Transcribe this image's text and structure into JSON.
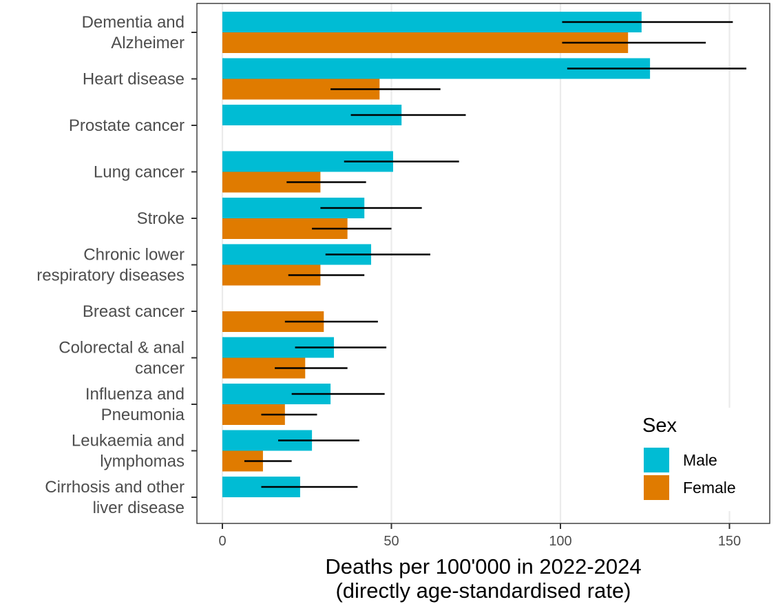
{
  "chart_data": {
    "type": "bar",
    "orientation": "horizontal",
    "categories": [
      [
        "Dementia and",
        "Alzheimer"
      ],
      [
        "Heart disease"
      ],
      [
        "Prostate cancer"
      ],
      [
        "Lung cancer"
      ],
      [
        "Stroke"
      ],
      [
        "Chronic lower",
        "respiratory diseases"
      ],
      [
        "Breast cancer"
      ],
      [
        "Colorectal & anal",
        "cancer"
      ],
      [
        "Influenza and",
        "Pneumonia"
      ],
      [
        "Leukaemia and",
        "lymphomas"
      ],
      [
        "Cirrhosis and other",
        "liver disease"
      ]
    ],
    "series": [
      {
        "name": "Male",
        "color": "#00bcd4",
        "values": [
          124,
          126.5,
          53,
          50.5,
          42,
          44,
          null,
          33,
          32,
          26.5,
          23
        ],
        "lower": [
          100.5,
          102,
          38,
          36,
          29,
          30.5,
          null,
          21.5,
          20.5,
          16.5,
          11.5
        ],
        "upper": [
          151,
          155,
          72,
          70,
          59,
          61.5,
          null,
          48.5,
          48,
          40.5,
          40
        ]
      },
      {
        "name": "Female",
        "color": "#e07b00",
        "values": [
          120,
          46.5,
          null,
          29,
          37,
          29,
          30,
          24.5,
          18.5,
          12,
          null
        ],
        "lower": [
          100.5,
          32,
          null,
          19,
          26.5,
          19.5,
          18.5,
          15.5,
          11.5,
          6.5,
          null
        ],
        "upper": [
          143,
          64.5,
          null,
          42.5,
          50,
          42,
          46,
          37,
          28,
          20.5,
          null
        ]
      }
    ],
    "xlim": [
      -7,
      162
    ],
    "xticks": [
      0,
      50,
      100,
      150
    ],
    "xtick_labels": [
      "0",
      "50",
      "100",
      "150"
    ],
    "xlabel": [
      "Deaths per 100'000 in 2022-2024",
      "(directly age-standardised rate)"
    ],
    "legend": {
      "title": "Sex",
      "position": "bottom-right",
      "entries": [
        "Male",
        "Female"
      ]
    },
    "grid": "vertical major only",
    "error_bars": true
  }
}
